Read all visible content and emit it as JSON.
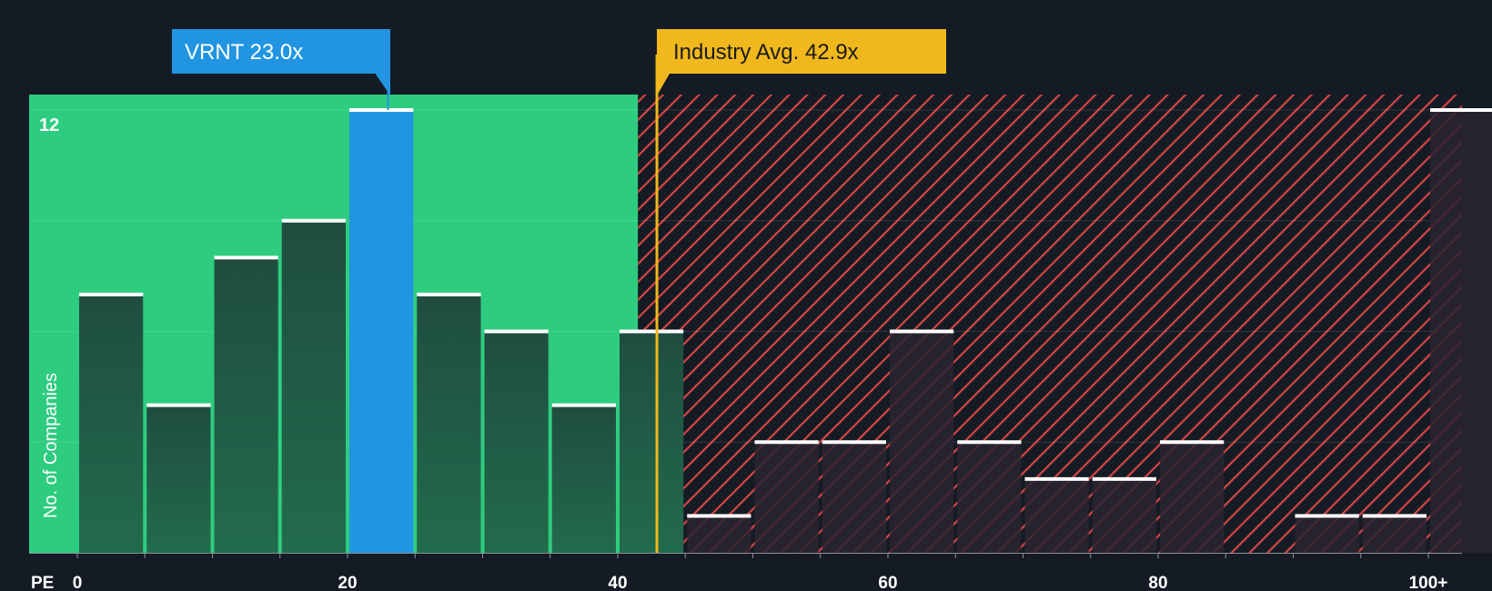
{
  "chart_data": {
    "type": "bar",
    "title": "",
    "xlabel": "PE",
    "ylabel": "No. of Companies",
    "x_bin_width": 5,
    "bins_start": [
      0,
      5,
      10,
      15,
      20,
      25,
      30,
      35,
      40,
      45,
      50,
      55,
      60,
      65,
      70,
      75,
      80,
      85,
      90,
      95,
      100
    ],
    "values": [
      7,
      4,
      8,
      9,
      12,
      7,
      6,
      4,
      6,
      1,
      3,
      3,
      6,
      3,
      2,
      2,
      3,
      0,
      1,
      1,
      12
    ],
    "ylim": [
      0,
      12
    ],
    "y_tick_labels": [
      "12"
    ],
    "x_ticks": [
      0,
      20,
      40,
      60,
      80,
      100
    ],
    "x_tick_labels": [
      "0",
      "20",
      "40",
      "60",
      "80",
      "100+"
    ],
    "highlight_bar_index": 4,
    "fair_range_max": 41.5,
    "company_marker": {
      "label": "VRNT 23.0x",
      "value": 23.0
    },
    "industry_marker": {
      "label": "Industry Avg. 42.9x",
      "value": 42.9
    },
    "colors": {
      "background": "#151b24",
      "fair_zone": "#2ecc7f",
      "bar": "#1f4d40",
      "highlight_bar": "#2195e1",
      "overvalued_stripe": "#d64545",
      "overvalued_bar": "#2a2530",
      "industry": "#f0b81c",
      "company": "#2195e1",
      "bar_cap": "#ffffff",
      "axis_text": "#ffffff"
    }
  }
}
